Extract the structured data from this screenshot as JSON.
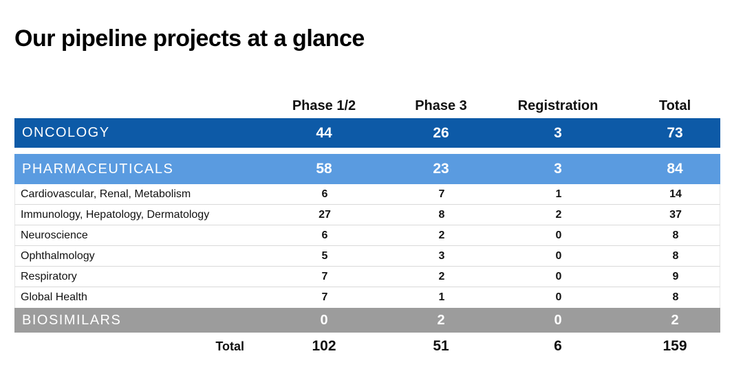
{
  "title": "Our pipeline projects at a glance",
  "columns": [
    "Phase 1/2",
    "Phase 3",
    "Registration",
    "Total"
  ],
  "oncology": {
    "label": "ONCOLOGY",
    "values": [
      "44",
      "26",
      "3",
      "73"
    ]
  },
  "pharmaceuticals": {
    "label": "PHARMACEUTICALS",
    "values": [
      "58",
      "23",
      "3",
      "84"
    ],
    "areas": [
      {
        "label": "Cardiovascular, Renal, Metabolism",
        "values": [
          "6",
          "7",
          "1",
          "14"
        ]
      },
      {
        "label": "Immunology, Hepatology, Dermatology",
        "values": [
          "27",
          "8",
          "2",
          "37"
        ]
      },
      {
        "label": "Neuroscience",
        "values": [
          "6",
          "2",
          "0",
          "8"
        ]
      },
      {
        "label": "Ophthalmology",
        "values": [
          "5",
          "3",
          "0",
          "8"
        ]
      },
      {
        "label": "Respiratory",
        "values": [
          "7",
          "2",
          "0",
          "9"
        ]
      },
      {
        "label": "Global Health",
        "values": [
          "7",
          "1",
          "0",
          "8"
        ]
      }
    ]
  },
  "biosimilars": {
    "label": "BIOSIMILARS",
    "values": [
      "0",
      "2",
      "0",
      "2"
    ]
  },
  "totals": {
    "label": "Total",
    "values": [
      "102",
      "51",
      "6",
      "159"
    ]
  },
  "colors": {
    "oncology": "#0d5aa7",
    "pharmaceuticals": "#5a9be0",
    "biosimilars": "#9c9c9c"
  }
}
